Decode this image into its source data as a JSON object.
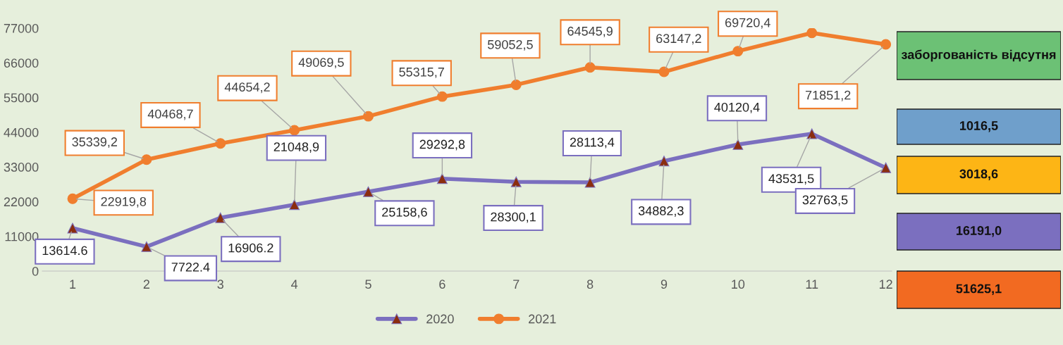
{
  "chart_data": [
    {
      "type": "line",
      "categories": [
        "1",
        "2",
        "3",
        "4",
        "5",
        "6",
        "7",
        "8",
        "9",
        "10",
        "11",
        "12"
      ],
      "ylim": [
        0,
        77000
      ],
      "yticks": [
        0,
        11000,
        22000,
        33000,
        44000,
        55000,
        66000,
        77000
      ],
      "grid": false,
      "legend": "bottom",
      "series": [
        {
          "name": "2020",
          "color": "#7b6fbf",
          "marker": "triangle",
          "values": [
            13614.6,
            7722.4,
            16906.2,
            21048.9,
            25158.6,
            29292.8,
            28300.1,
            28113.4,
            34882.3,
            40120.4,
            43531.5,
            32763.5
          ],
          "value_labels": [
            "13614.6",
            "7722.4",
            "16906.2",
            "21048,9",
            "25158,6",
            "29292,8",
            "28300,1",
            "28113,4",
            "34882,3",
            "40120,4",
            "43531,5",
            "32763,5"
          ]
        },
        {
          "name": "2021",
          "color": "#f07e2e",
          "marker": "circle",
          "values": [
            22919.8,
            35339.2,
            40468.7,
            44654.2,
            49069.5,
            55315.7,
            59052.5,
            64545.9,
            63147.2,
            69720.4,
            75500,
            71851.2
          ],
          "value_labels": [
            "22919,8",
            "35339,2",
            "40468,7",
            "44654,2",
            "49069,5",
            "55315,7",
            "59052,5",
            "64545,9",
            "63147,2",
            "69720,4",
            null,
            "71851,2"
          ]
        }
      ]
    },
    {
      "type": "other",
      "annotations": [
        "заборгованість відсутня",
        "1016,5",
        "3018,6",
        "16191,0",
        "51625,1"
      ],
      "colors": [
        "#6cc175",
        "#6f9fcb",
        "#fdb515",
        "#7b6fbf",
        "#f26a21"
      ]
    }
  ]
}
